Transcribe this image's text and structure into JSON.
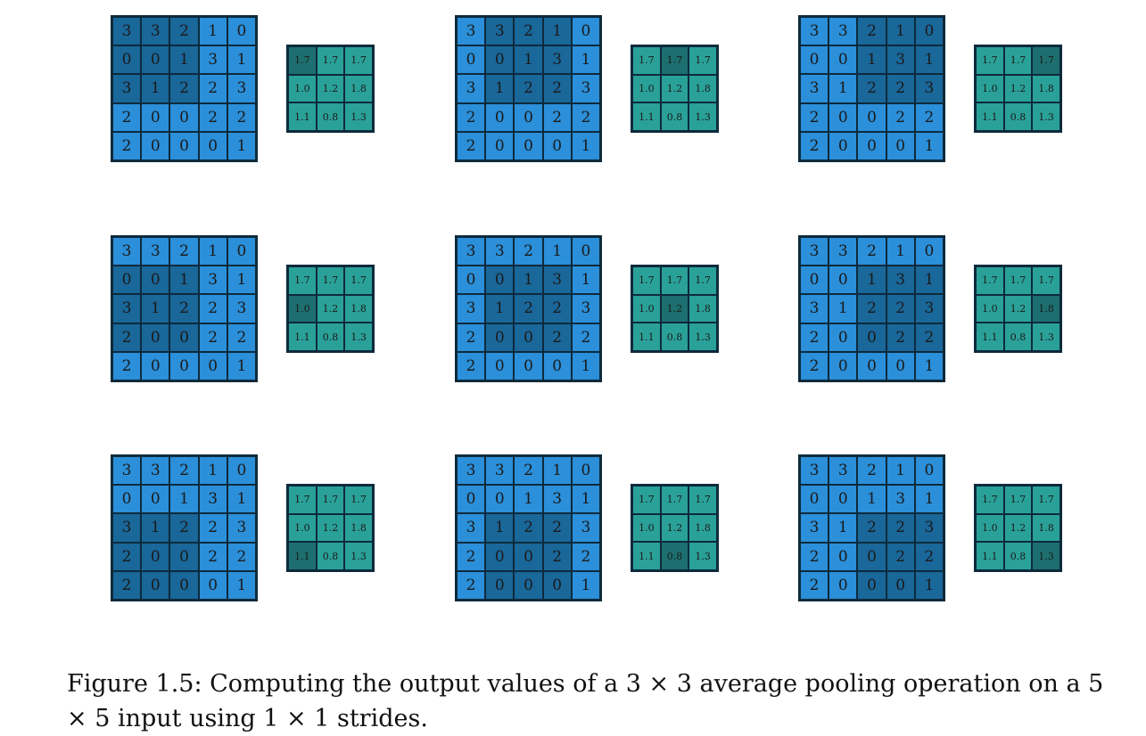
{
  "input_grid": [
    [
      3,
      3,
      2,
      1,
      0
    ],
    [
      0,
      0,
      1,
      3,
      1
    ],
    [
      3,
      1,
      2,
      2,
      3
    ],
    [
      2,
      0,
      0,
      2,
      2
    ],
    [
      2,
      0,
      0,
      0,
      1
    ]
  ],
  "output_grid": [
    [
      "1.7",
      "1.7",
      "1.7"
    ],
    [
      "1.0",
      "1.2",
      "1.8"
    ],
    [
      "1.1",
      "0.8",
      "1.3"
    ]
  ],
  "panels": [
    {
      "window_row": 0,
      "window_col": 0
    },
    {
      "window_row": 0,
      "window_col": 1
    },
    {
      "window_row": 0,
      "window_col": 2
    },
    {
      "window_row": 1,
      "window_col": 0
    },
    {
      "window_row": 1,
      "window_col": 1
    },
    {
      "window_row": 1,
      "window_col": 2
    },
    {
      "window_row": 2,
      "window_col": 0
    },
    {
      "window_row": 2,
      "window_col": 1
    },
    {
      "window_row": 2,
      "window_col": 2
    }
  ],
  "pool_size": 3,
  "colors": {
    "input": "#2b8fd9",
    "input_highlight": "#1a679a",
    "output": "#2aa198",
    "output_highlight": "#1d6f6f",
    "border": "#0d2a3c"
  },
  "caption": "Figure 1.5:  Computing the output values of a 3 × 3 average pooling operation on a 5 × 5 input using 1 × 1 strides."
}
